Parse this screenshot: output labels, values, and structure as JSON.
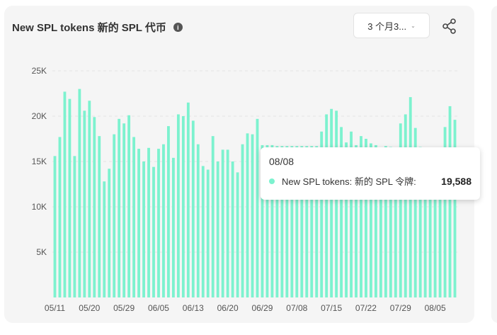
{
  "header": {
    "title": "New SPL tokens 新的 SPL 代币",
    "info_icon": "info-icon",
    "range_label": "3 个月3...",
    "share_icon": "share-icon"
  },
  "colors": {
    "bar": "#7df2cf",
    "grid": "#e2e2e2",
    "axis_text": "#555555"
  },
  "tooltip": {
    "date": "08/08",
    "series_label": "New SPL tokens: 新的 SPL 令牌:",
    "value": "19,588"
  },
  "chart_data": {
    "type": "bar",
    "title": "New SPL tokens 新的 SPL 代币",
    "y_ticks": [
      "5K",
      "10K",
      "15K",
      "20K",
      "25K"
    ],
    "x_tick_labels": [
      "05/11",
      "05/20",
      "05/29",
      "06/05",
      "06/13",
      "06/20",
      "06/29",
      "07/08",
      "07/15",
      "07/22",
      "07/29",
      "08/05"
    ],
    "ylim": [
      0,
      25000
    ],
    "grid": true,
    "series": [
      {
        "name": "New SPL tokens: 新的 SPL 令牌",
        "values": [
          15600,
          17700,
          22700,
          21900,
          15600,
          23000,
          20600,
          21700,
          19900,
          17800,
          12800,
          14200,
          18000,
          19700,
          19200,
          20100,
          17700,
          16400,
          15000,
          16500,
          14400,
          16400,
          16900,
          18900,
          15400,
          20200,
          20000,
          21500,
          19500,
          16900,
          14500,
          14100,
          17800,
          15000,
          16300,
          16300,
          15000,
          13800,
          16900,
          18100,
          18000,
          19700,
          16800,
          16800,
          16800,
          16700,
          16700,
          16700,
          16700,
          16700,
          16700,
          16700,
          16700,
          16700,
          18300,
          20200,
          20800,
          20600,
          18800,
          17100,
          18300,
          16800,
          17800,
          17500,
          17000,
          16800,
          16400,
          16700,
          16600,
          16300,
          19200,
          20200,
          22100,
          18700,
          16600,
          16000,
          16300,
          16400,
          16200,
          18800,
          21100,
          19600
        ]
      }
    ]
  }
}
